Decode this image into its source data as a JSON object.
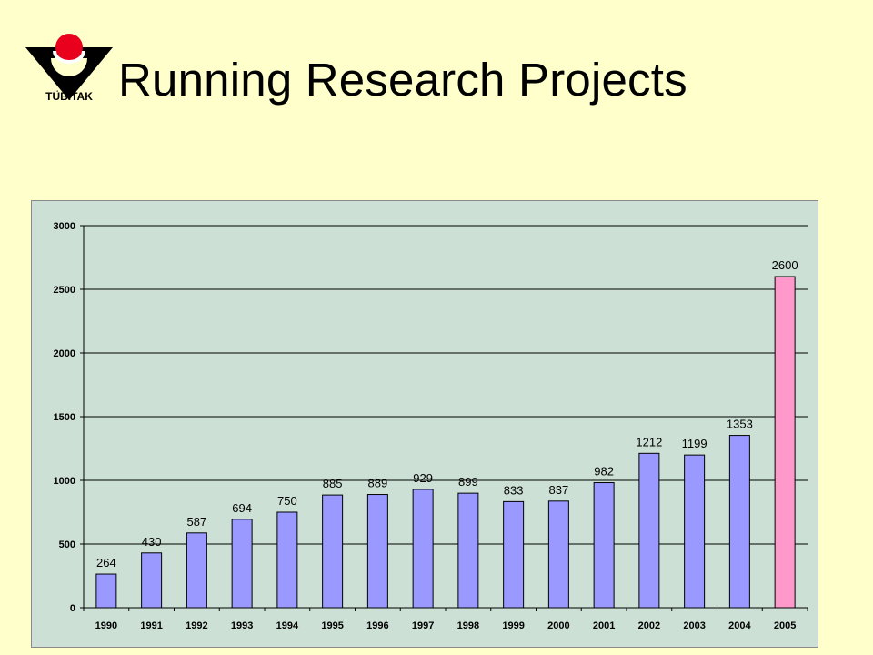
{
  "title": "Running Research Projects",
  "logo": {
    "text": "TÜBİTAK",
    "icon": "tubitak-logo"
  },
  "colors": {
    "background": "#ffffcc",
    "plot_area": "#cde0d6",
    "bar": "#9999ff",
    "bar_highlight": "#ff99cc",
    "logo_red": "#e8001c"
  },
  "chart_data": {
    "type": "bar",
    "categories": [
      "1990",
      "1991",
      "1992",
      "1993",
      "1994",
      "1995",
      "1996",
      "1997",
      "1998",
      "1999",
      "2000",
      "2001",
      "2002",
      "2003",
      "2004",
      "2005"
    ],
    "values": [
      264,
      430,
      587,
      694,
      750,
      885,
      889,
      929,
      899,
      833,
      837,
      982,
      1212,
      1199,
      1353,
      2600
    ],
    "data_labels": [
      "264",
      "430",
      "587",
      "694",
      "750",
      "885",
      "889",
      "929",
      "899",
      "833",
      "837",
      "982",
      "1212",
      "1199",
      "1353",
      "2600"
    ],
    "highlight_index": 15,
    "title": "",
    "xlabel": "",
    "ylabel": "",
    "ylim": [
      0,
      3000
    ],
    "yticks": [
      0,
      500,
      1000,
      1500,
      2000,
      2500,
      3000
    ],
    "ytick_labels": [
      "0",
      "500",
      "1000",
      "1500",
      "2000",
      "2500",
      "3000"
    ],
    "grid": true,
    "legend": "none"
  }
}
